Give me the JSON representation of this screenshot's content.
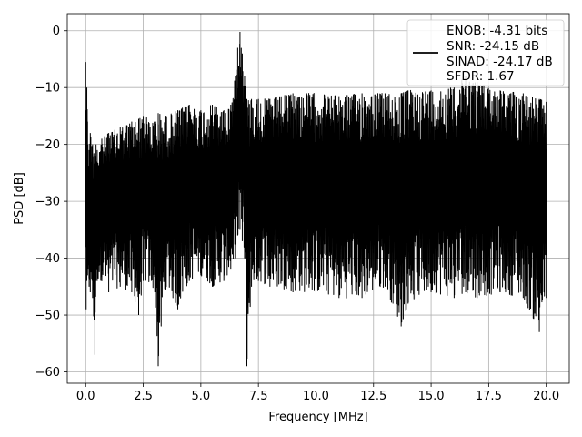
{
  "chart_data": {
    "type": "line",
    "xlabel": "Frequency [MHz]",
    "ylabel": "PSD [dB]",
    "xlim": [
      -0.8,
      21.0
    ],
    "ylim": [
      -62,
      3
    ],
    "x_ticks": [
      0.0,
      2.5,
      5.0,
      7.5,
      10.0,
      12.5,
      15.0,
      17.5,
      20.0
    ],
    "x_tick_labels": [
      "0.0",
      "2.5",
      "5.0",
      "7.5",
      "10.0",
      "12.5",
      "15.0",
      "17.5",
      "20.0"
    ],
    "y_ticks": [
      0,
      -10,
      -20,
      -30,
      -40,
      -50,
      -60
    ],
    "y_tick_labels": [
      "0",
      "−10",
      "−20",
      "−30",
      "−40",
      "−50",
      "−60"
    ],
    "grid": true,
    "legend_position": "top-right",
    "legend_lines": [
      "ENOB: -4.31 bits",
      "SNR: -24.15 dB",
      "SINAD: -24.17 dB",
      "SFDR: 1.67"
    ],
    "series_color": "#000000",
    "series": [
      {
        "x": [
          0.0,
          0.02,
          0.05,
          0.08,
          0.1,
          0.15,
          0.2,
          0.3,
          0.4,
          0.45,
          0.5,
          0.7,
          1.0,
          1.5,
          2.0,
          2.3,
          2.5,
          3.0,
          3.15,
          3.5,
          4.0,
          4.5,
          5.0,
          5.5,
          6.0,
          6.3,
          6.5,
          6.6,
          6.7,
          6.8,
          6.9,
          7.0,
          7.2,
          7.5,
          8.0,
          9.0,
          10.0,
          11.0,
          12.0,
          13.0,
          13.7,
          14.0,
          15.0,
          16.0,
          16.5,
          17.0,
          18.0,
          19.0,
          19.7,
          20.0
        ],
        "y_upper": [
          -5.5,
          -14,
          -10,
          -16,
          -20,
          -21,
          -18,
          -20,
          -22,
          -20,
          -21,
          -19,
          -18,
          -17,
          -16,
          -15.5,
          -15,
          -16,
          -14.5,
          -15,
          -14,
          -13,
          -14,
          -13,
          -14,
          -13,
          -8,
          -3,
          -0.2,
          -4,
          -8,
          -12,
          -12,
          -12,
          -12,
          -11,
          -11,
          -11.5,
          -11,
          -11,
          -11,
          -10.5,
          -10.5,
          -10,
          -8,
          -9,
          -10.5,
          -11,
          -12,
          -12.5
        ],
        "y_lower": [
          -30,
          -49,
          -44,
          -43,
          -42,
          -45,
          -46,
          -47,
          -57,
          -44,
          -44,
          -44,
          -46,
          -45,
          -46,
          -50,
          -44,
          -46,
          -59,
          -45,
          -49,
          -44,
          -43,
          -45,
          -44,
          -42,
          -40,
          -36,
          -35,
          -37,
          -40,
          -59,
          -45,
          -44,
          -45,
          -46,
          -46,
          -47,
          -47,
          -45,
          -52,
          -48,
          -46,
          -47,
          -46,
          -47,
          -46,
          -47,
          -53,
          -47
        ]
      }
    ]
  }
}
